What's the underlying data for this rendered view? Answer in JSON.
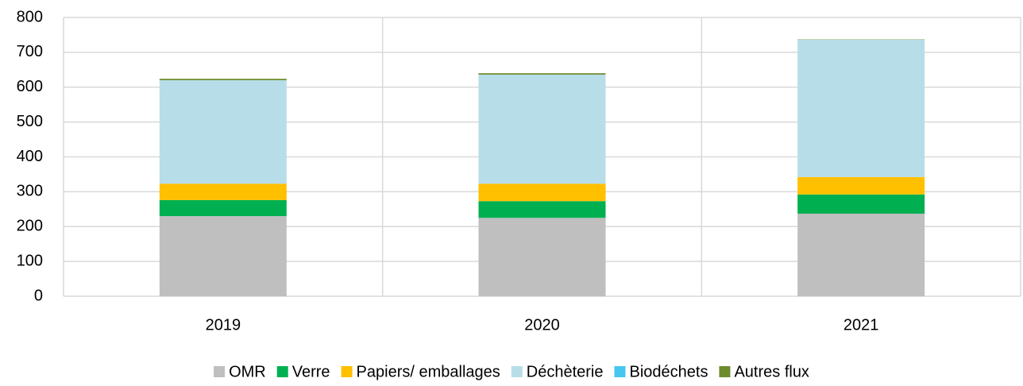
{
  "chart_data": {
    "type": "stacked_bar",
    "categories": [
      "2019",
      "2020",
      "2021"
    ],
    "series": [
      {
        "name": "OMR",
        "color": "#bfbfbf",
        "values": [
          230,
          225,
          237
        ]
      },
      {
        "name": "Verre",
        "color": "#00b050",
        "values": [
          46,
          48,
          55
        ]
      },
      {
        "name": "Papiers/ emballages",
        "color": "#ffc000",
        "values": [
          47,
          50,
          50
        ]
      },
      {
        "name": "Déchèterie",
        "color": "#b7dee8",
        "values": [
          297,
          313,
          394
        ]
      },
      {
        "name": "Biodéchets",
        "color": "#47c6f0",
        "values": [
          0,
          0,
          0
        ]
      },
      {
        "name": "Autres flux",
        "color": "#6e8b2e",
        "values": [
          4,
          4,
          1
        ]
      }
    ],
    "ylim": [
      0,
      800
    ],
    "yticks": [
      0,
      100,
      200,
      300,
      400,
      500,
      600,
      700,
      800
    ],
    "grid": true,
    "legend": "bottom"
  }
}
